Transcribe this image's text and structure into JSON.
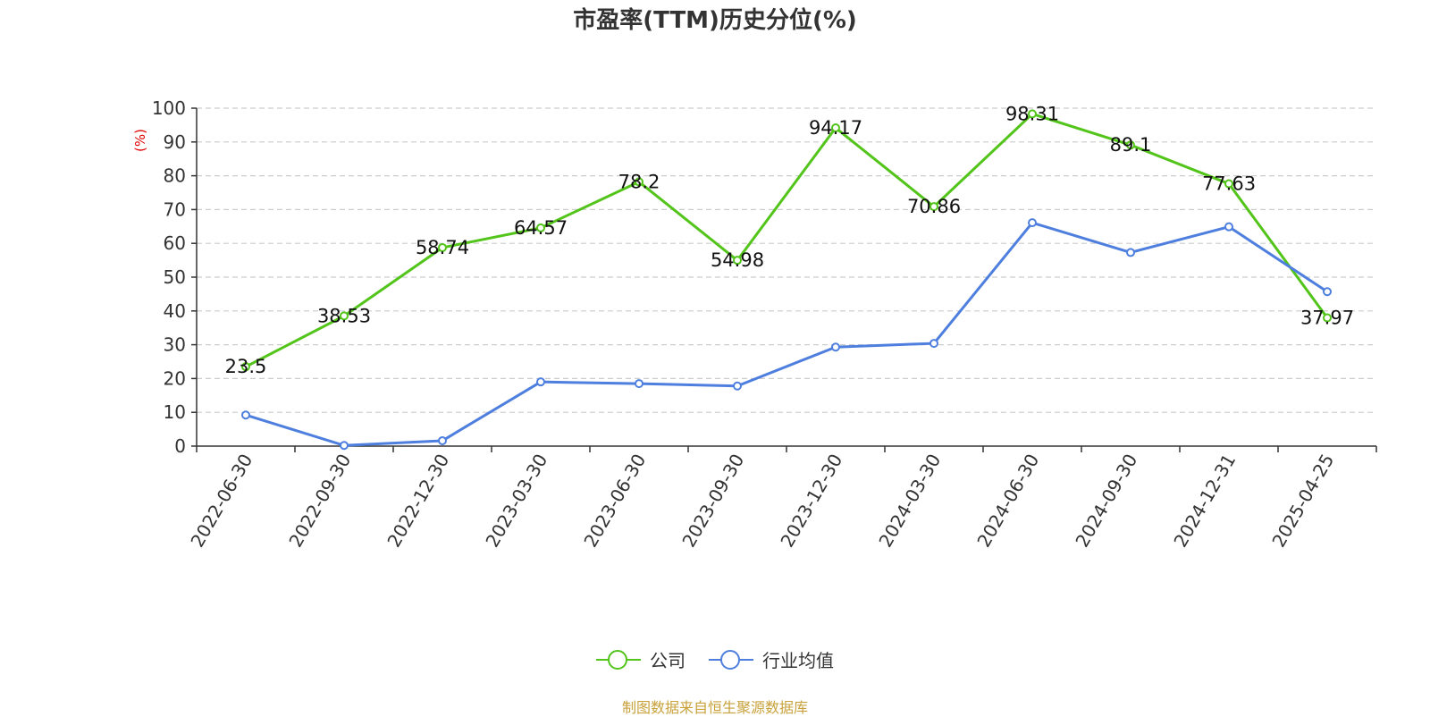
{
  "chart_data": {
    "type": "line",
    "title": "市盈率(TTM)历史分位(%)",
    "ylabel": "(%)",
    "xlabel": "",
    "ylim": [
      0,
      100
    ],
    "yticks": [
      0,
      10,
      20,
      30,
      40,
      50,
      60,
      70,
      80,
      90,
      100
    ],
    "grid": true,
    "legend_position": "bottom",
    "categories": [
      "2022-06-30",
      "2022-09-30",
      "2022-12-30",
      "2023-03-30",
      "2023-06-30",
      "2023-09-30",
      "2023-12-30",
      "2024-03-30",
      "2024-06-30",
      "2024-09-30",
      "2024-12-31",
      "2025-04-25"
    ],
    "series": [
      {
        "name": "公司",
        "color": "#52c41a",
        "values": [
          23.5,
          38.53,
          58.74,
          64.57,
          78.2,
          54.98,
          94.17,
          70.86,
          98.31,
          89.1,
          77.63,
          37.97
        ],
        "data_labels": [
          "23.5",
          "38.53",
          "58.74",
          "64.57",
          "78.2",
          "54.98",
          "94.17",
          "70.86",
          "98.31",
          "89.1",
          "77.63",
          "37.97"
        ]
      },
      {
        "name": "行业均值",
        "color": "#4e7fde",
        "values": [
          9.2,
          0.2,
          1.6,
          19.0,
          18.5,
          17.8,
          29.3,
          30.4,
          66.1,
          57.3,
          64.9,
          45.7
        ]
      }
    ]
  },
  "source": "制图数据来自恒生聚源数据库"
}
